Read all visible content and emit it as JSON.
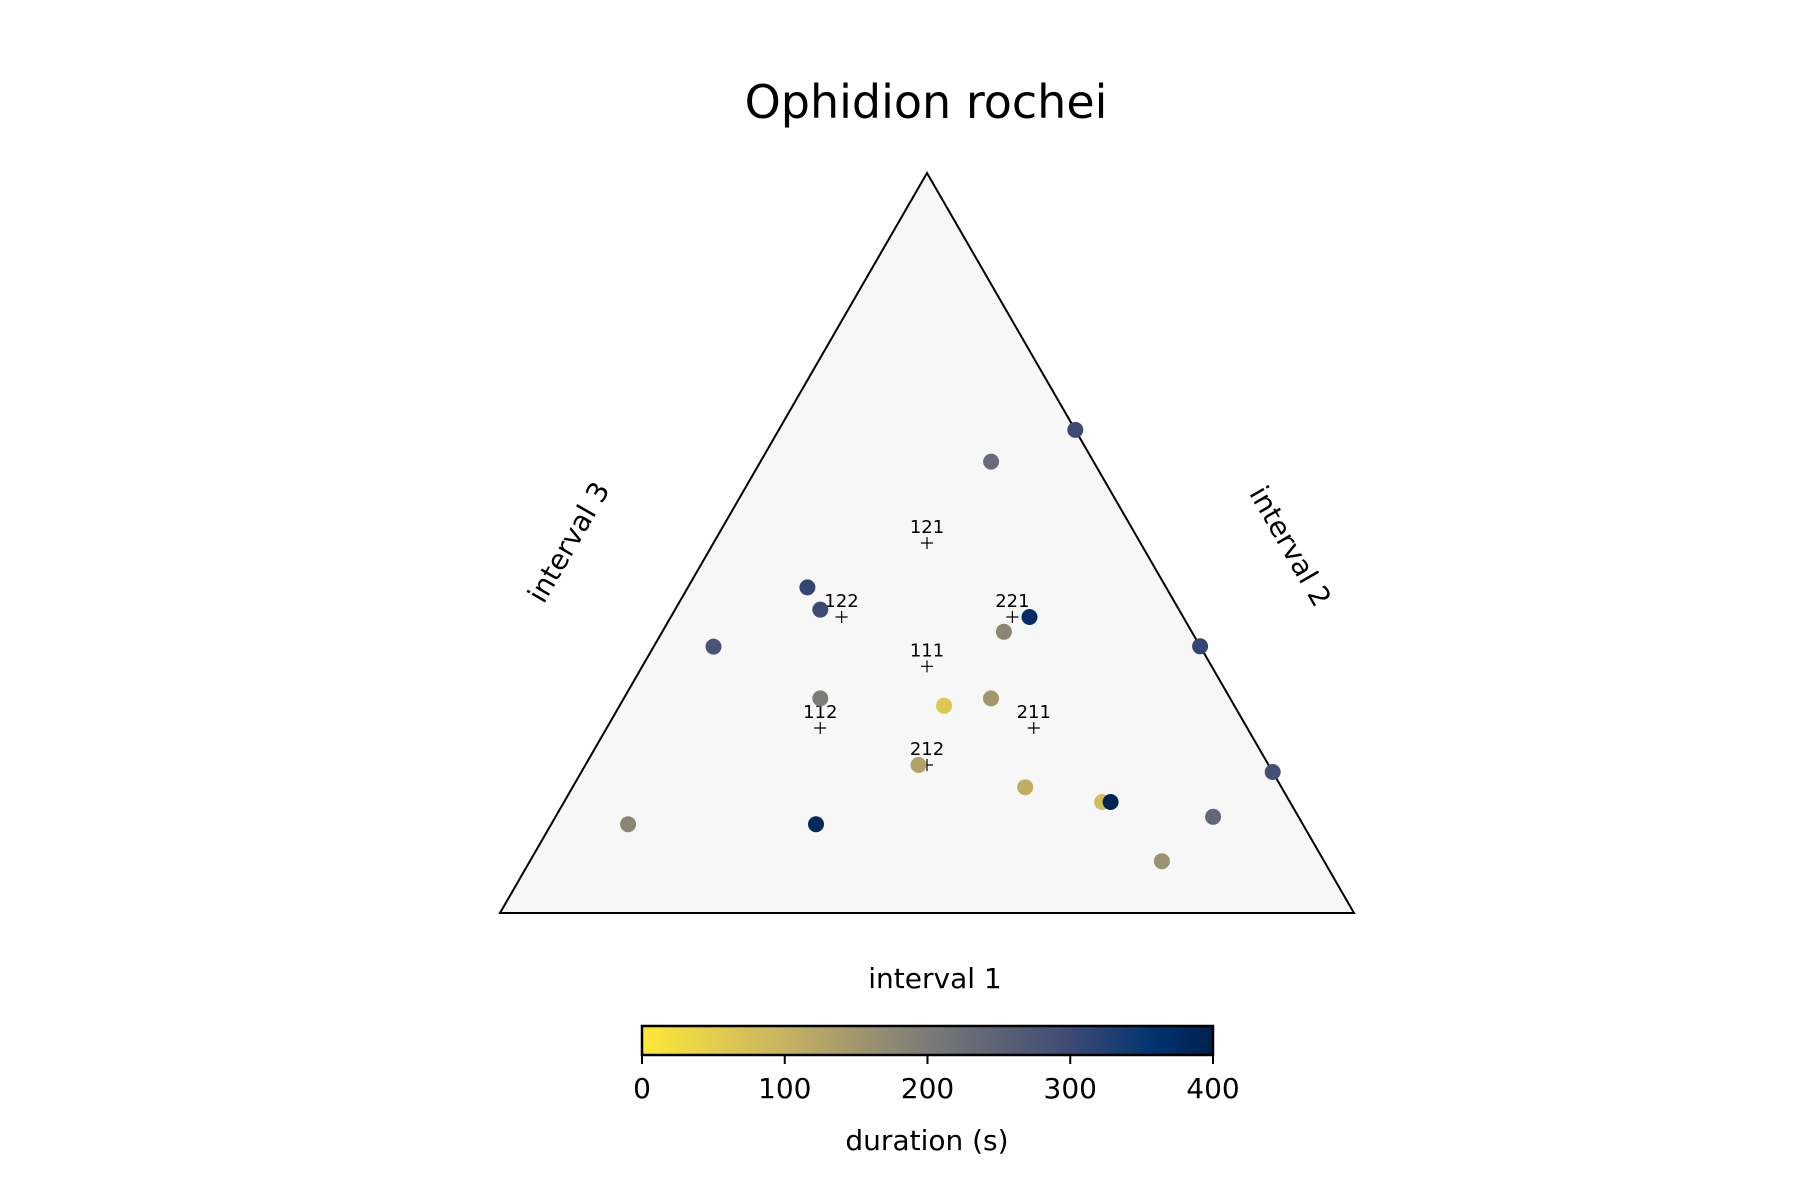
{
  "chart_data": {
    "type": "scatter",
    "subtype": "ternary",
    "title": "Ophidion rochei",
    "axis_labels": {
      "bottom": "interval 1",
      "right": "interval 2",
      "left": "interval 3"
    },
    "colorbar": {
      "label": "duration (s)",
      "min": 0,
      "max": 400,
      "ticks": [
        0,
        100,
        200,
        300,
        400
      ],
      "colormap": "cividis_r"
    },
    "reference_points": [
      {
        "label": "111",
        "a": 0.333,
        "b": 0.333,
        "c": 0.333
      },
      {
        "label": "121",
        "a": 0.25,
        "b": 0.5,
        "c": 0.25
      },
      {
        "label": "122",
        "a": 0.2,
        "b": 0.4,
        "c": 0.4
      },
      {
        "label": "221",
        "a": 0.4,
        "b": 0.4,
        "c": 0.2
      },
      {
        "label": "112",
        "a": 0.25,
        "b": 0.25,
        "c": 0.5
      },
      {
        "label": "211",
        "a": 0.5,
        "b": 0.25,
        "c": 0.25
      },
      {
        "label": "212",
        "a": 0.4,
        "b": 0.2,
        "c": 0.4
      }
    ],
    "points": [
      {
        "a": 0.27,
        "b": 0.61,
        "c": 0.12,
        "duration": 230
      },
      {
        "a": 0.38,
        "b": 0.28,
        "c": 0.34,
        "duration": 60
      },
      {
        "a": 0.43,
        "b": 0.29,
        "c": 0.28,
        "duration": 150
      },
      {
        "a": 0.53,
        "b": 0.17,
        "c": 0.3,
        "duration": 110
      },
      {
        "a": 0.71,
        "b": 0.4,
        "c": 0.0,
        "duration": 310
      },
      {
        "a": 0.42,
        "b": 0.4,
        "c": 0.18,
        "duration": 370
      },
      {
        "a": 0.4,
        "b": 0.38,
        "c": 0.22,
        "duration": 180
      },
      {
        "a": 0.14,
        "b": 0.44,
        "c": 0.42,
        "duration": 310
      },
      {
        "a": 0.17,
        "b": 0.41,
        "c": 0.42,
        "duration": 300
      },
      {
        "a": 0.07,
        "b": 0.36,
        "c": 0.57,
        "duration": 280
      },
      {
        "a": 0.23,
        "b": 0.29,
        "c": 0.48,
        "duration": 200
      },
      {
        "a": 0.09,
        "b": 0.12,
        "c": 0.79,
        "duration": 180
      },
      {
        "a": 0.31,
        "b": 0.12,
        "c": 0.57,
        "duration": 380
      },
      {
        "a": 0.63,
        "b": 0.15,
        "c": 0.22,
        "duration": 80
      },
      {
        "a": 0.64,
        "b": 0.15,
        "c": 0.21,
        "duration": 390
      },
      {
        "a": 0.85,
        "b": 0.2,
        "c": 0.0,
        "duration": 290
      },
      {
        "a": 0.77,
        "b": 0.13,
        "c": 0.1,
        "duration": 240
      },
      {
        "a": 0.74,
        "b": 0.07,
        "c": 0.19,
        "duration": 160
      },
      {
        "a": 0.39,
        "b": 0.2,
        "c": 0.41,
        "duration": 130
      },
      {
        "a": 0.5,
        "b": 0.94,
        "c": 0.0,
        "duration": 300
      }
    ]
  }
}
